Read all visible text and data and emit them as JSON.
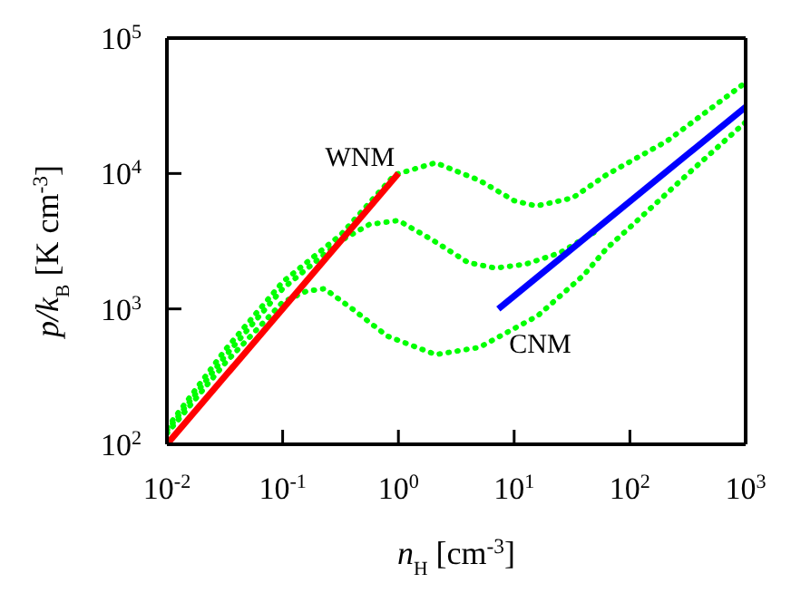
{
  "chart_data": {
    "type": "line",
    "xlabel": "n$_{H}$ [cm$^{-3}$]",
    "ylabel": "p/k$_{B}$ [K cm$^{-3}$]",
    "log": "xy",
    "marker": "none",
    "xlim": [
      0.01,
      1000
    ],
    "ylim": [
      100,
      100000
    ],
    "xticks": [
      {
        "value": 0.01,
        "label": "10$^{-2}$"
      },
      {
        "value": 0.1,
        "label": "10$^{-1}$"
      },
      {
        "value": 1,
        "label": "10$^{0}$"
      },
      {
        "value": 10,
        "label": "10$^{1}$"
      },
      {
        "value": 100,
        "label": "10$^{2}$"
      },
      {
        "value": 1000,
        "label": "10$^{3}$"
      }
    ],
    "yticks": [
      {
        "value": 100,
        "label": "10$^{2}$"
      },
      {
        "value": 1000,
        "label": "10$^{3}$"
      },
      {
        "value": 10000,
        "label": "10$^{4}$"
      },
      {
        "value": 100000,
        "label": "10$^{5}$"
      }
    ],
    "series": [
      {
        "color": "#00ff00",
        "line_style": "dotted",
        "x": [
          0.01,
          0.032,
          0.1,
          0.16,
          0.23,
          0.4,
          0.8,
          2.1,
          5,
          16,
          40,
          63,
          100,
          320,
          1000
        ],
        "values": [
          120,
          400,
          1120,
          1350,
          1410,
          1000,
          630,
          460,
          520,
          890,
          1780,
          2800,
          4000,
          10000,
          24000
        ]
      },
      {
        "color": "#00ff00",
        "line_style": "dotted",
        "x": [
          0.01,
          0.032,
          0.1,
          0.32,
          0.56,
          1,
          2,
          4,
          6.9,
          12.6,
          25,
          50
        ],
        "values": [
          126,
          450,
          1410,
          3200,
          4200,
          4500,
          3200,
          2200,
          2000,
          2140,
          2600,
          3700
        ]
      },
      {
        "color": "#00ff00",
        "line_style": "dotted",
        "x": [
          0.01,
          0.032,
          0.1,
          0.32,
          0.93,
          2.1,
          5,
          10,
          15.5,
          32,
          63,
          210,
          1000
        ],
        "values": [
          132,
          500,
          1580,
          3550,
          9800,
          12000,
          8900,
          6300,
          5750,
          6600,
          9800,
          17400,
          47000
        ]
      },
      {
        "color": "#ff0000",
        "line_style": "solid",
        "x": [
          0.01,
          1
        ],
        "values": [
          100,
          10000
        ]
      },
      {
        "color": "#0000ff",
        "line_style": "solid",
        "x": [
          7.3,
          1000
        ],
        "values": [
          1000,
          31000
        ]
      }
    ],
    "annotations": [
      {
        "text": "WNM",
        "x": 1,
        "y": 10000
      },
      {
        "text": "CNM",
        "x": 7.3,
        "y": 1000
      }
    ]
  }
}
